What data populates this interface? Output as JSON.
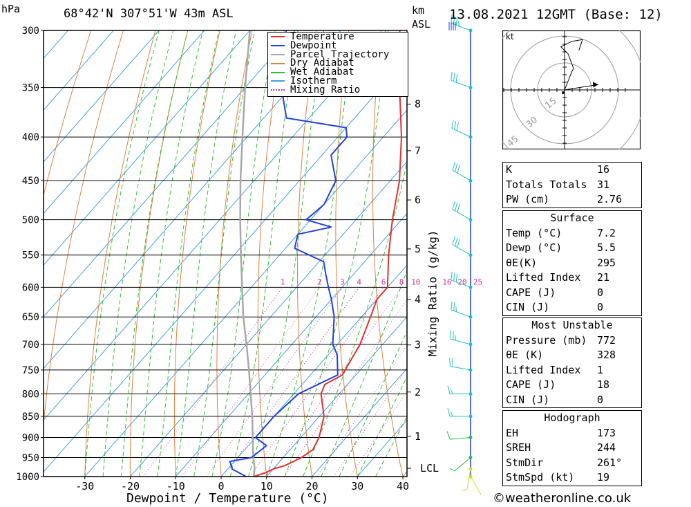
{
  "header": {
    "pressure_unit": "hPa",
    "location": "68°42'N  307°51'W  43m  ASL",
    "km_label": "km",
    "asl_label": "ASL",
    "datetime": "13.08.2021  12GMT  (Base: 12)"
  },
  "chart_data": {
    "type": "line",
    "xlabel": "Dewpoint / Temperature (°C)",
    "ylabel": "hPa",
    "mixing_ratio_axis_label": "Mixing Ratio (g/kg)",
    "xlim": [
      -40,
      40
    ],
    "ylim": [
      1000,
      300
    ],
    "pressure_ticks": [
      300,
      350,
      400,
      450,
      500,
      550,
      600,
      650,
      700,
      750,
      800,
      850,
      900,
      950,
      1000
    ],
    "temperature_ticks": [
      -30,
      -20,
      -10,
      0,
      10,
      20,
      30,
      40
    ],
    "height_km_ticks": [
      {
        "label": "8",
        "p": 366
      },
      {
        "label": "7",
        "p": 415
      },
      {
        "label": "6",
        "p": 474
      },
      {
        "label": "5",
        "p": 541
      },
      {
        "label": "4",
        "p": 620
      },
      {
        "label": "3",
        "p": 701
      },
      {
        "label": "2",
        "p": 796
      },
      {
        "label": "1",
        "p": 897
      },
      {
        "label": "LCL",
        "p": 978
      }
    ],
    "mixing_ratio_labels": [
      "1",
      "2",
      "3",
      "4",
      "6",
      "8",
      "10",
      "16",
      "20",
      "25"
    ],
    "legend": [
      "Temperature",
      "Dewpoint",
      "Parcel Trajectory",
      "Dry Adiabat",
      "Wet Adiabat",
      "Isotherm",
      "Mixing Ratio"
    ],
    "legend_position": "top-right",
    "colors": {
      "temperature": "#e03030",
      "dewpoint": "#2040e0",
      "parcel": "#a8a8a8",
      "dry_adiabat": "#e08040",
      "wet_adiabat": "#30c030",
      "isotherm": "#40a0e0",
      "mixing_ratio": "#d030a0",
      "wind_barb": "#20c0c0"
    },
    "series": [
      {
        "name": "Temperature",
        "points": [
          [
            1000,
            7.2
          ],
          [
            990,
            9
          ],
          [
            980,
            10
          ],
          [
            970,
            12
          ],
          [
            950,
            14
          ],
          [
            930,
            15
          ],
          [
            900,
            14
          ],
          [
            850,
            11
          ],
          [
            800,
            6
          ],
          [
            780,
            5
          ],
          [
            760,
            7
          ],
          [
            700,
            5
          ],
          [
            650,
            2
          ],
          [
            620,
            0
          ],
          [
            600,
            0
          ],
          [
            550,
            -6
          ],
          [
            500,
            -12
          ],
          [
            450,
            -18
          ],
          [
            400,
            -26
          ],
          [
            350,
            -36
          ],
          [
            300,
            -47
          ]
        ]
      },
      {
        "name": "Dewpoint",
        "points": [
          [
            1000,
            5.5
          ],
          [
            980,
            1
          ],
          [
            960,
            -1
          ],
          [
            950,
            3
          ],
          [
            920,
            4
          ],
          [
            900,
            0
          ],
          [
            850,
            0
          ],
          [
            800,
            1
          ],
          [
            760,
            6
          ],
          [
            720,
            2
          ],
          [
            700,
            -1
          ],
          [
            650,
            -6
          ],
          [
            620,
            -10
          ],
          [
            600,
            -13
          ],
          [
            580,
            -16
          ],
          [
            560,
            -19
          ],
          [
            540,
            -28
          ],
          [
            520,
            -30
          ],
          [
            510,
            -24
          ],
          [
            500,
            -31
          ],
          [
            480,
            -30
          ],
          [
            450,
            -32
          ],
          [
            420,
            -38
          ],
          [
            410,
            -38
          ],
          [
            400,
            -38
          ],
          [
            390,
            -40
          ],
          [
            380,
            -55
          ],
          [
            350,
            -62
          ],
          [
            300,
            -72
          ]
        ]
      },
      {
        "name": "Parcel Trajectory",
        "points": [
          [
            1000,
            7.2
          ],
          [
            978,
            5.8
          ],
          [
            950,
            3.4
          ],
          [
            900,
            -0.6
          ],
          [
            850,
            -4.8
          ],
          [
            800,
            -9.5
          ],
          [
            750,
            -14.5
          ],
          [
            700,
            -20
          ],
          [
            650,
            -26
          ],
          [
            600,
            -32
          ],
          [
            550,
            -38.5
          ],
          [
            500,
            -45.5
          ],
          [
            450,
            -53
          ],
          [
            400,
            -61
          ],
          [
            350,
            -70
          ],
          [
            300,
            -80
          ]
        ]
      }
    ],
    "wind_barbs": [
      {
        "p": 1000,
        "dir": 150,
        "kt": 3
      },
      {
        "p": 980,
        "dir": 190,
        "kt": 5
      },
      {
        "p": 950,
        "dir": 230,
        "kt": 8
      },
      {
        "p": 900,
        "dir": 265,
        "kt": 12
      },
      {
        "p": 850,
        "dir": 270,
        "kt": 15
      },
      {
        "p": 800,
        "dir": 270,
        "kt": 18
      },
      {
        "p": 750,
        "dir": 280,
        "kt": 22
      },
      {
        "p": 700,
        "dir": 285,
        "kt": 25
      },
      {
        "p": 650,
        "dir": 290,
        "kt": 25
      },
      {
        "p": 600,
        "dir": 290,
        "kt": 30
      },
      {
        "p": 550,
        "dir": 300,
        "kt": 30
      },
      {
        "p": 500,
        "dir": 300,
        "kt": 30
      },
      {
        "p": 450,
        "dir": 300,
        "kt": 30
      },
      {
        "p": 400,
        "dir": 295,
        "kt": 30
      },
      {
        "p": 350,
        "dir": 290,
        "kt": 30
      },
      {
        "p": 300,
        "dir": 290,
        "kt": 35
      }
    ]
  },
  "hodograph": {
    "unit_label": "kt",
    "ring_labels": [
      "15",
      "30",
      "45"
    ],
    "trace": [
      [
        0,
        0
      ],
      [
        2,
        5
      ],
      [
        4,
        10
      ],
      [
        5,
        12
      ],
      [
        2,
        20
      ],
      [
        -2,
        24
      ],
      [
        4,
        27
      ],
      [
        10,
        28
      ],
      [
        8,
        22
      ]
    ],
    "storm_motion": {
      "dir": 261,
      "kt": 19
    }
  },
  "indices": [
    {
      "label": "K",
      "value": "16"
    },
    {
      "label": "Totals Totals",
      "value": "31"
    },
    {
      "label": "PW (cm)",
      "value": "2.76"
    }
  ],
  "surface": {
    "title": "Surface",
    "rows": [
      {
        "label": "Temp (°C)",
        "value": "7.2"
      },
      {
        "label": "Dewp (°C)",
        "value": "5.5"
      },
      {
        "label": "θE(K)",
        "value": "295"
      },
      {
        "label": "Lifted Index",
        "value": "21"
      },
      {
        "label": "CAPE (J)",
        "value": "0"
      },
      {
        "label": "CIN (J)",
        "value": "0"
      }
    ]
  },
  "most_unstable": {
    "title": "Most Unstable",
    "rows": [
      {
        "label": "Pressure (mb)",
        "value": "772"
      },
      {
        "label": "θE (K)",
        "value": "328"
      },
      {
        "label": "Lifted Index",
        "value": "1"
      },
      {
        "label": "CAPE (J)",
        "value": "18"
      },
      {
        "label": "CIN (J)",
        "value": "0"
      }
    ]
  },
  "hodograph_stats": {
    "title": "Hodograph",
    "rows": [
      {
        "label": "EH",
        "value": "173"
      },
      {
        "label": "SREH",
        "value": "244"
      },
      {
        "label": "StmDir",
        "value": "261°"
      },
      {
        "label": "StmSpd (kt)",
        "value": "19"
      }
    ]
  },
  "credit": "©weatheronline.co.uk"
}
